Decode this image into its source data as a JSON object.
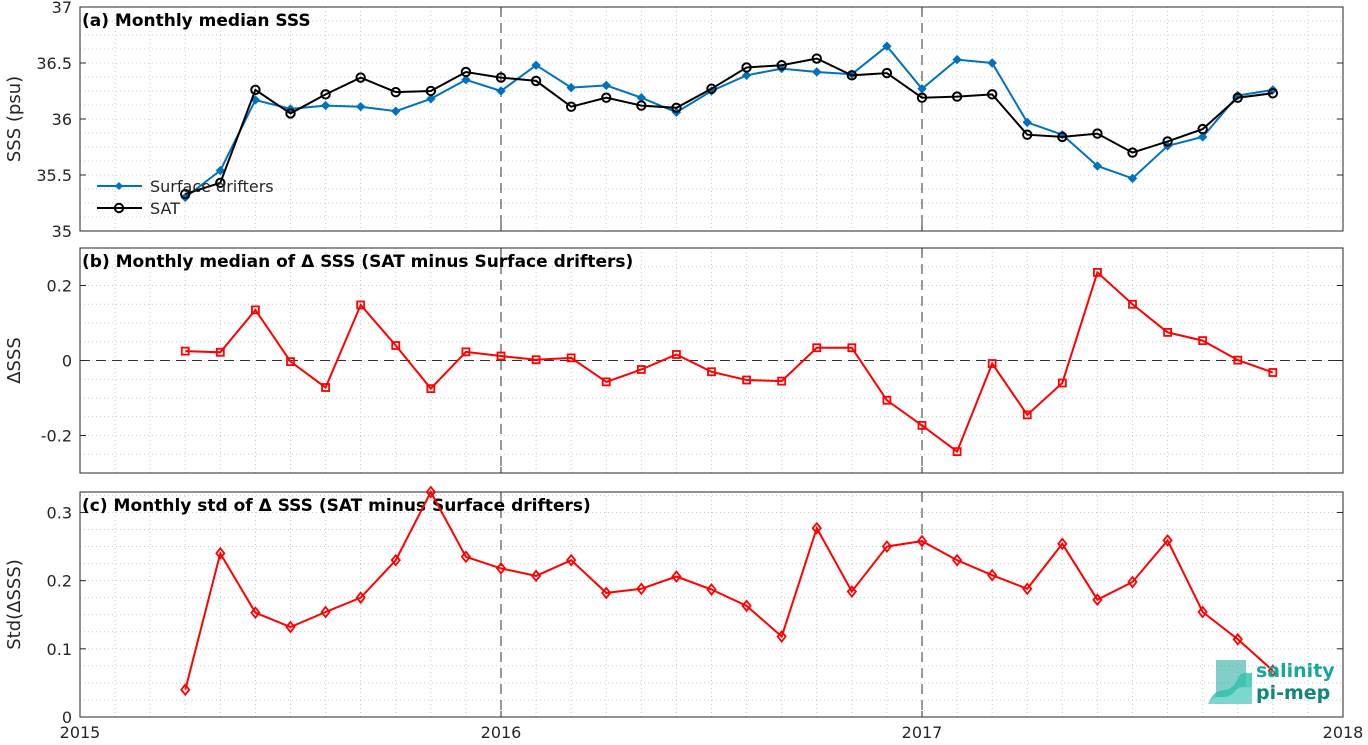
{
  "colors": {
    "drifters": "#0072BD",
    "sat": "#000000",
    "delta": "#FF0000",
    "logo": "#1aa79a"
  },
  "logo": {
    "line1": "salinity",
    "line2": "pi-mep"
  },
  "chart_data": [
    {
      "type": "line",
      "title": "(a) Monthly median SSS",
      "ylabel": "SSS (psu)",
      "xlim": [
        2015,
        2018
      ],
      "ylim": [
        35,
        37
      ],
      "yticks": [
        35,
        35.5,
        36,
        36.5,
        37
      ],
      "ytick_labels": [
        "35",
        "35.5",
        "36",
        "36.5",
        "37"
      ],
      "xticks": [
        2015,
        2016,
        2017,
        2018
      ],
      "xtick_labels": [
        "",
        "",
        "",
        ""
      ],
      "vlines": [
        2016,
        2017
      ],
      "legend": {
        "placement": "bottom-left"
      },
      "x": [
        "2015-04",
        "2015-05",
        "2015-06",
        "2015-07",
        "2015-08",
        "2015-09",
        "2015-10",
        "2015-11",
        "2015-12",
        "2016-01",
        "2016-02",
        "2016-03",
        "2016-04",
        "2016-05",
        "2016-06",
        "2016-07",
        "2016-08",
        "2016-09",
        "2016-10",
        "2016-11",
        "2016-12",
        "2017-01",
        "2017-02",
        "2017-03",
        "2017-04",
        "2017-05",
        "2017-06",
        "2017-07",
        "2017-08",
        "2017-09",
        "2017-10",
        "2017-11"
      ],
      "series": [
        {
          "name": "Surface drifters",
          "marker": "dot",
          "color": "#0072BD",
          "values": [
            35.3,
            35.54,
            36.17,
            36.09,
            36.12,
            36.11,
            36.07,
            36.18,
            36.35,
            36.25,
            36.48,
            36.28,
            36.3,
            36.19,
            36.06,
            36.25,
            36.39,
            36.45,
            36.42,
            36.4,
            36.65,
            36.27,
            36.53,
            36.5,
            35.97,
            35.86,
            35.58,
            35.47,
            35.76,
            35.84,
            36.21,
            36.26
          ]
        },
        {
          "name": "SAT",
          "marker": "circle",
          "color": "#000000",
          "values": [
            35.33,
            35.43,
            36.26,
            36.05,
            36.22,
            36.37,
            36.24,
            36.25,
            36.42,
            36.37,
            36.34,
            36.11,
            36.19,
            36.12,
            36.1,
            36.27,
            36.46,
            36.48,
            36.54,
            36.39,
            36.41,
            36.19,
            36.2,
            36.22,
            35.86,
            35.84,
            35.87,
            35.7,
            35.8,
            35.91,
            36.19,
            36.23
          ]
        }
      ]
    },
    {
      "type": "line",
      "title": "(b) Monthly median of Δ SSS (SAT minus Surface drifters)",
      "ylabel": "ΔSSS",
      "xlim": [
        2015,
        2018
      ],
      "ylim": [
        -0.3,
        0.3
      ],
      "yticks": [
        -0.2,
        0,
        0.2
      ],
      "ytick_labels": [
        "-0.2",
        "0",
        "0.2"
      ],
      "xticks": [
        2015,
        2016,
        2017,
        2018
      ],
      "xtick_labels": [
        "",
        "",
        "",
        ""
      ],
      "vlines": [
        2016,
        2017
      ],
      "hline": 0,
      "x": [
        "2015-04",
        "2015-05",
        "2015-06",
        "2015-07",
        "2015-08",
        "2015-09",
        "2015-10",
        "2015-11",
        "2015-12",
        "2016-01",
        "2016-02",
        "2016-03",
        "2016-04",
        "2016-05",
        "2016-06",
        "2016-07",
        "2016-08",
        "2016-09",
        "2016-10",
        "2016-11",
        "2016-12",
        "2017-01",
        "2017-02",
        "2017-03",
        "2017-04",
        "2017-05",
        "2017-06",
        "2017-07",
        "2017-08",
        "2017-09",
        "2017-10",
        "2017-11"
      ],
      "series": [
        {
          "marker": "square",
          "color": "#FF0000",
          "values": [
            0.025,
            0.022,
            0.135,
            -0.003,
            -0.072,
            0.148,
            0.04,
            -0.075,
            0.023,
            0.012,
            0.002,
            0.007,
            -0.057,
            -0.024,
            0.016,
            -0.03,
            -0.052,
            -0.055,
            0.034,
            0.034,
            -0.106,
            -0.173,
            -0.243,
            -0.008,
            -0.145,
            -0.06,
            0.235,
            0.15,
            0.075,
            0.053,
            0.001,
            -0.032
          ]
        }
      ]
    },
    {
      "type": "line",
      "title": "(c) Monthly std of Δ SSS (SAT minus Surface drifters)",
      "ylabel": "Std(ΔSSS)",
      "xlim": [
        2015,
        2018
      ],
      "ylim": [
        0,
        0.33
      ],
      "yticks": [
        0,
        0.1,
        0.2,
        0.3
      ],
      "ytick_labels": [
        "0",
        "0.1",
        "0.2",
        "0.3"
      ],
      "xticks": [
        2015,
        2016,
        2017,
        2018
      ],
      "xtick_labels": [
        "2015",
        "2016",
        "2017",
        "2018"
      ],
      "vlines": [
        2016,
        2017
      ],
      "x": [
        "2015-04",
        "2015-05",
        "2015-06",
        "2015-07",
        "2015-08",
        "2015-09",
        "2015-10",
        "2015-11",
        "2015-12",
        "2016-01",
        "2016-02",
        "2016-03",
        "2016-04",
        "2016-05",
        "2016-06",
        "2016-07",
        "2016-08",
        "2016-09",
        "2016-10",
        "2016-11",
        "2016-12",
        "2017-01",
        "2017-02",
        "2017-03",
        "2017-04",
        "2017-05",
        "2017-06",
        "2017-07",
        "2017-08",
        "2017-09",
        "2017-10",
        "2017-11"
      ],
      "series": [
        {
          "marker": "diamond",
          "color": "#FF0000",
          "values": [
            0.04,
            0.24,
            0.153,
            0.132,
            0.154,
            0.175,
            0.23,
            0.33,
            0.235,
            0.218,
            0.207,
            0.23,
            0.182,
            0.188,
            0.206,
            0.187,
            0.163,
            0.118,
            0.277,
            0.184,
            0.25,
            0.258,
            0.23,
            0.208,
            0.188,
            0.254,
            0.172,
            0.198,
            0.259,
            0.154,
            0.114,
            0.068
          ]
        }
      ]
    }
  ]
}
